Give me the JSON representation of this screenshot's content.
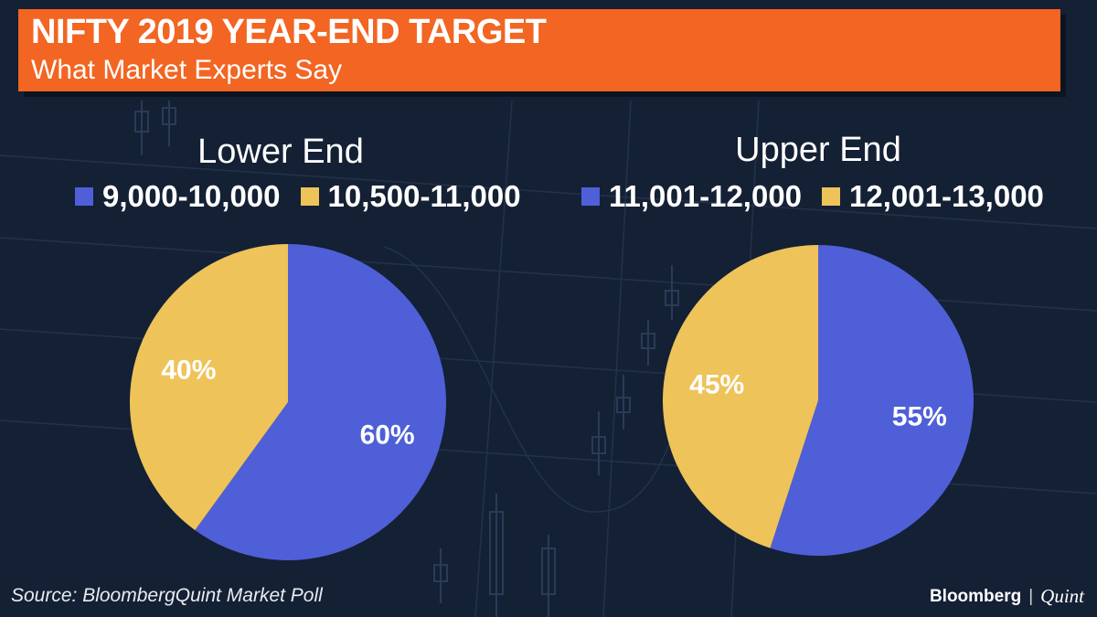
{
  "header": {
    "title": "NIFTY 2019 YEAR-END TARGET",
    "subtitle": "What Market Experts Say"
  },
  "colors": {
    "banner": "#f26522",
    "blue": "#4f5fd8",
    "yellow": "#eec35a",
    "background": "#142034"
  },
  "chart_data": [
    {
      "type": "pie",
      "title": "Lower End",
      "categories": [
        "9,000-10,000",
        "10,500-11,000"
      ],
      "values": [
        60,
        40
      ],
      "labels": [
        "60%",
        "40%"
      ],
      "colors": [
        "#4f5fd8",
        "#eec35a"
      ],
      "legend_position": "top"
    },
    {
      "type": "pie",
      "title": "Upper End",
      "categories": [
        "11,001-12,000",
        "12,001-13,000"
      ],
      "values": [
        55,
        45
      ],
      "labels": [
        "55%",
        "45%"
      ],
      "colors": [
        "#4f5fd8",
        "#eec35a"
      ],
      "legend_position": "top"
    }
  ],
  "footer": {
    "source": "Source: BloombergQuint Market Poll",
    "brand_bloomberg": "Bloomberg",
    "brand_separator": "|",
    "brand_quint": "Quint"
  }
}
